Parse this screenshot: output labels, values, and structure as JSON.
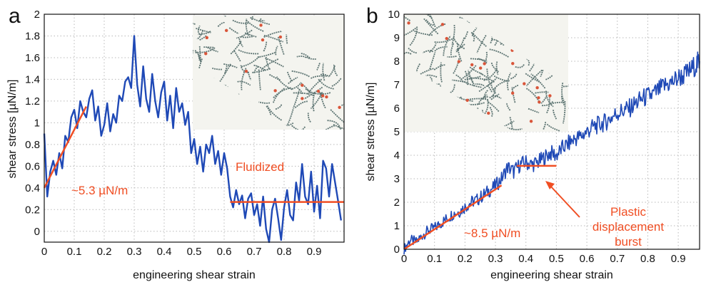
{
  "chart_data": [
    {
      "panel_label": "a",
      "type": "line",
      "xlabel": "engineering shear strain",
      "ylabel": "shear stress [µN/m]",
      "xlim": [
        0,
        1
      ],
      "ylim": [
        -0.1,
        2
      ],
      "x_ticks": [
        "0",
        "0.1",
        "0.2",
        "0.3",
        "0.4",
        "0.5",
        "0.6",
        "0.7",
        "0.8",
        "0.9"
      ],
      "y_ticks": [
        "0",
        "0.2",
        "0.4",
        "0.6",
        "0.8",
        "1",
        "1.2",
        "1.4",
        "1.6",
        "1.8",
        "2"
      ],
      "grid": true,
      "series": [
        {
          "color": "#1f49b6",
          "x": [
            0.0,
            0.01,
            0.02,
            0.03,
            0.04,
            0.05,
            0.06,
            0.07,
            0.08,
            0.09,
            0.1,
            0.11,
            0.12,
            0.13,
            0.14,
            0.15,
            0.16,
            0.17,
            0.18,
            0.19,
            0.2,
            0.21,
            0.22,
            0.23,
            0.24,
            0.25,
            0.26,
            0.27,
            0.28,
            0.29,
            0.3,
            0.31,
            0.32,
            0.33,
            0.34,
            0.35,
            0.36,
            0.37,
            0.38,
            0.39,
            0.4,
            0.41,
            0.42,
            0.43,
            0.44,
            0.45,
            0.46,
            0.47,
            0.48,
            0.49,
            0.5,
            0.51,
            0.52,
            0.53,
            0.54,
            0.55,
            0.56,
            0.57,
            0.58,
            0.59,
            0.6,
            0.61,
            0.62,
            0.63,
            0.64,
            0.65,
            0.66,
            0.67,
            0.68,
            0.69,
            0.7,
            0.71,
            0.72,
            0.73,
            0.74,
            0.75,
            0.76,
            0.77,
            0.78,
            0.79,
            0.8,
            0.81,
            0.82,
            0.83,
            0.84,
            0.85,
            0.86,
            0.87,
            0.88,
            0.89,
            0.9,
            0.91,
            0.92,
            0.93,
            0.94,
            0.95,
            0.96,
            0.97,
            0.98,
            0.99
          ],
          "values": [
            0.9,
            0.32,
            0.55,
            0.65,
            0.52,
            0.72,
            0.58,
            0.88,
            0.82,
            1.05,
            1.12,
            0.95,
            1.2,
            1.1,
            1.05,
            1.22,
            1.3,
            1.02,
            1.15,
            0.88,
            0.98,
            1.18,
            0.92,
            1.08,
            1.0,
            1.25,
            1.2,
            1.38,
            1.42,
            1.32,
            1.8,
            1.35,
            1.15,
            1.52,
            1.22,
            1.1,
            1.45,
            1.2,
            1.05,
            1.28,
            1.38,
            1.02,
            1.25,
            0.95,
            1.32,
            1.1,
            1.18,
            0.98,
            1.1,
            0.72,
            0.85,
            0.62,
            0.78,
            0.55,
            0.8,
            0.72,
            0.88,
            0.62,
            0.74,
            0.52,
            0.72,
            0.58,
            0.32,
            0.22,
            0.38,
            0.25,
            0.33,
            0.12,
            0.3,
            0.35,
            0.15,
            0.25,
            0.05,
            0.32,
            0.02,
            -0.1,
            0.2,
            0.3,
            0.12,
            -0.08,
            0.22,
            0.38,
            0.15,
            0.1,
            0.45,
            0.28,
            0.62,
            0.32,
            0.25,
            0.55,
            0.18,
            0.42,
            0.12,
            0.65,
            0.58,
            0.32,
            0.62,
            0.45,
            0.28,
            0.1
          ]
        }
      ],
      "fits": [
        {
          "x": [
            0.0,
            0.14
          ],
          "y": [
            0.4,
            1.15
          ],
          "color": "#f04e23"
        },
        {
          "x": [
            0.62,
            1.0
          ],
          "y": [
            0.27,
            0.27
          ],
          "color": "#f04e23"
        }
      ],
      "annotations": [
        "~5.3 µN/m",
        "Fluidized"
      ]
    },
    {
      "panel_label": "b",
      "type": "line",
      "xlabel": "engineering shear strain",
      "ylabel": "shear stress [µN/m]",
      "xlim": [
        0,
        0.97
      ],
      "ylim": [
        0,
        10
      ],
      "x_ticks": [
        "0",
        "0.1",
        "0.2",
        "0.3",
        "0.4",
        "0.5",
        "0.6",
        "0.7",
        "0.8",
        "0.9"
      ],
      "y_ticks": [
        "0",
        "1",
        "2",
        "3",
        "4",
        "5",
        "6",
        "7",
        "8",
        "9",
        "10"
      ],
      "grid": true,
      "series": [
        {
          "color": "#1f49b6",
          "x": [
            0.0,
            0.02,
            0.04,
            0.06,
            0.08,
            0.1,
            0.12,
            0.14,
            0.16,
            0.18,
            0.2,
            0.22,
            0.24,
            0.26,
            0.28,
            0.3,
            0.32,
            0.34,
            0.36,
            0.38,
            0.4,
            0.42,
            0.44,
            0.46,
            0.48,
            0.5,
            0.52,
            0.54,
            0.56,
            0.58,
            0.6,
            0.62,
            0.64,
            0.66,
            0.68,
            0.7,
            0.72,
            0.74,
            0.76,
            0.78,
            0.8,
            0.82,
            0.84,
            0.86,
            0.88,
            0.9,
            0.92,
            0.94,
            0.96,
            0.97
          ],
          "values": [
            0.0,
            0.4,
            0.3,
            0.6,
            0.8,
            0.9,
            1.1,
            1.3,
            1.5,
            1.6,
            1.8,
            2.0,
            2.1,
            2.3,
            2.5,
            2.7,
            3.0,
            3.5,
            3.3,
            3.6,
            3.7,
            3.6,
            3.7,
            3.9,
            4.1,
            4.0,
            4.3,
            4.5,
            4.7,
            4.8,
            5.0,
            5.2,
            5.3,
            5.4,
            5.6,
            5.8,
            5.9,
            6.0,
            6.2,
            6.4,
            6.5,
            6.6,
            6.8,
            7.0,
            7.1,
            7.3,
            7.4,
            7.6,
            7.9,
            8.0
          ]
        }
      ],
      "fits": [
        {
          "x": [
            0.0,
            0.32
          ],
          "y": [
            0.0,
            2.72
          ],
          "color": "#f04e23"
        },
        {
          "x": [
            0.37,
            0.5
          ],
          "y": [
            3.55,
            3.55
          ],
          "color": "#f04e23"
        }
      ],
      "annotations": [
        "~8.5 µN/m",
        "Plastic",
        "displacement",
        "burst"
      ]
    }
  ]
}
